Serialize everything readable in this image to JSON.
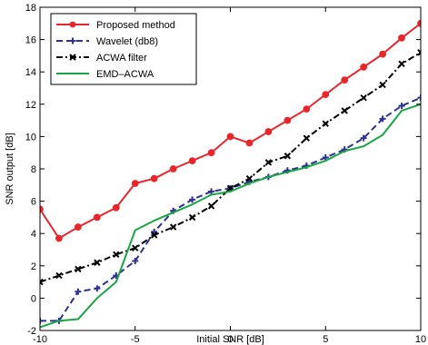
{
  "chart_data": {
    "type": "line",
    "xlabel": "Initial SNR [dB]",
    "ylabel": "SNR output [dB]",
    "xlim": [
      -10,
      10
    ],
    "ylim": [
      -2,
      18
    ],
    "xticks": [
      -10,
      -5,
      0,
      5,
      10
    ],
    "yticks": [
      -2,
      0,
      2,
      4,
      6,
      8,
      10,
      12,
      14,
      16,
      18
    ],
    "grid": false,
    "legend_position": "top-left",
    "x": [
      -10,
      -9,
      -8,
      -7,
      -6,
      -5,
      -4,
      -3,
      -2,
      -1,
      0,
      1,
      2,
      3,
      4,
      5,
      6,
      7,
      8,
      9,
      10
    ],
    "series": [
      {
        "name": "Proposed method",
        "color": "#e8262b",
        "style": "solid",
        "marker": "circle",
        "values": [
          5.5,
          3.7,
          4.4,
          5.0,
          5.6,
          7.1,
          7.4,
          8.0,
          8.5,
          9.0,
          10.0,
          9.6,
          10.3,
          11.0,
          11.7,
          12.6,
          13.5,
          14.3,
          15.1,
          16.1,
          17.0
        ]
      },
      {
        "name": "Wavelet (db8)",
        "color": "#2e3192",
        "style": "dashed",
        "marker": "plus",
        "values": [
          -1.4,
          -1.4,
          0.4,
          0.6,
          1.4,
          2.3,
          4.1,
          5.4,
          6.1,
          6.6,
          6.8,
          7.2,
          7.5,
          7.9,
          8.2,
          8.7,
          9.2,
          9.9,
          11.1,
          11.9,
          12.4
        ]
      },
      {
        "name": "ACWA filter",
        "color": "#000000",
        "style": "dashdot",
        "marker": "x",
        "values": [
          1.0,
          1.4,
          1.8,
          2.2,
          2.7,
          3.1,
          3.9,
          4.4,
          5.0,
          5.7,
          6.8,
          7.4,
          8.4,
          8.8,
          9.9,
          10.8,
          11.6,
          12.4,
          13.2,
          14.5,
          15.2
        ]
      },
      {
        "name": "EMD–ACWA",
        "color": "#1aa643",
        "style": "solid",
        "marker": "none",
        "values": [
          -1.8,
          -1.4,
          -1.3,
          0.0,
          1.0,
          4.2,
          4.8,
          5.3,
          5.8,
          6.4,
          6.6,
          7.1,
          7.5,
          7.8,
          8.1,
          8.5,
          9.1,
          9.4,
          10.1,
          11.6,
          12.0
        ]
      }
    ]
  }
}
